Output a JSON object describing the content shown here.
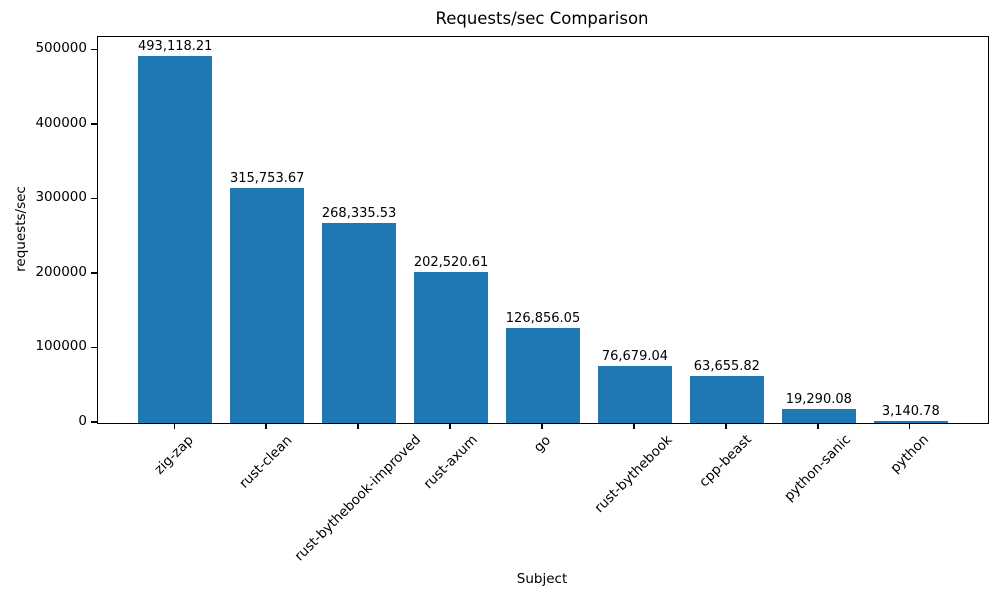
{
  "chart_data": {
    "type": "bar",
    "title": "Requests/sec Comparison",
    "xlabel": "Subject",
    "ylabel": "requests/sec",
    "categories": [
      "zig-zap",
      "rust-clean",
      "rust-bythebook-improved",
      "rust-axum",
      "go",
      "rust-bythebook",
      "cpp-beast",
      "python-sanic",
      "python"
    ],
    "values": [
      493118.21,
      315753.67,
      268335.53,
      202520.61,
      126856.05,
      76679.04,
      63655.82,
      19290.08,
      3140.78
    ],
    "value_labels": [
      "493,118.21",
      "315,753.67",
      "268,335.53",
      "202,520.61",
      "126,856.05",
      "76,679.04",
      "63,655.82",
      "19,290.08",
      "3,140.78"
    ],
    "yticks": [
      0,
      100000,
      200000,
      300000,
      400000,
      500000
    ],
    "ytick_labels": [
      "0",
      "100000",
      "200000",
      "300000",
      "400000",
      "500000"
    ],
    "ylim": [
      0,
      518000
    ],
    "xlim": [
      -0.84,
      8.84
    ],
    "bar_width": 0.8,
    "bar_color": "#1f77b4",
    "grid": false,
    "xtick_rotation": 45,
    "legend_position": "none"
  }
}
